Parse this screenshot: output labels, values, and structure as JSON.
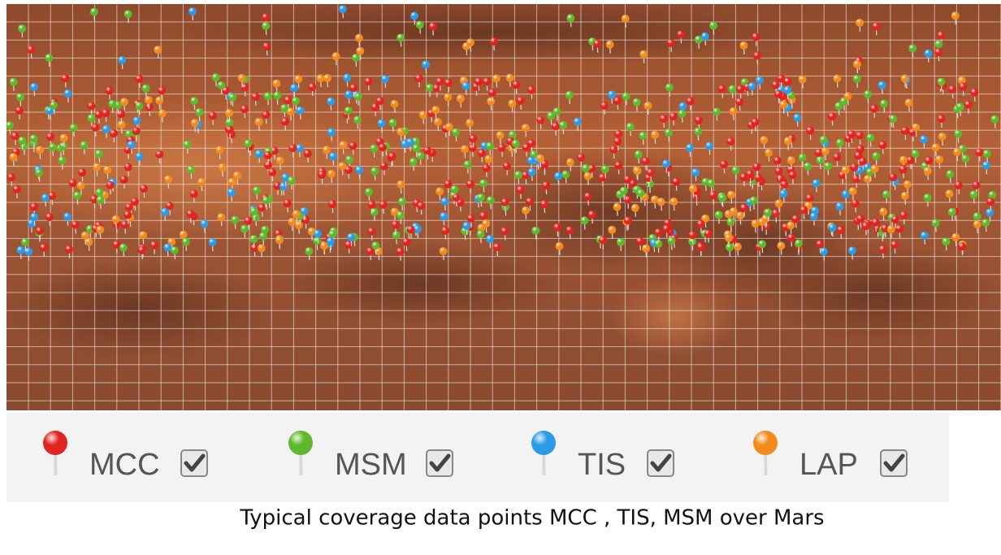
{
  "legend": {
    "items": [
      {
        "label": "MCC",
        "color": "#e0241f",
        "checked": true
      },
      {
        "label": "MSM",
        "color": "#5fb82b",
        "checked": true
      },
      {
        "label": "TIS",
        "color": "#2b9be6",
        "checked": true
      },
      {
        "label": "LAP",
        "color": "#f28a1c",
        "checked": true
      }
    ]
  },
  "caption": "Typical coverage data points MCC , TIS, MSM over Mars"
}
